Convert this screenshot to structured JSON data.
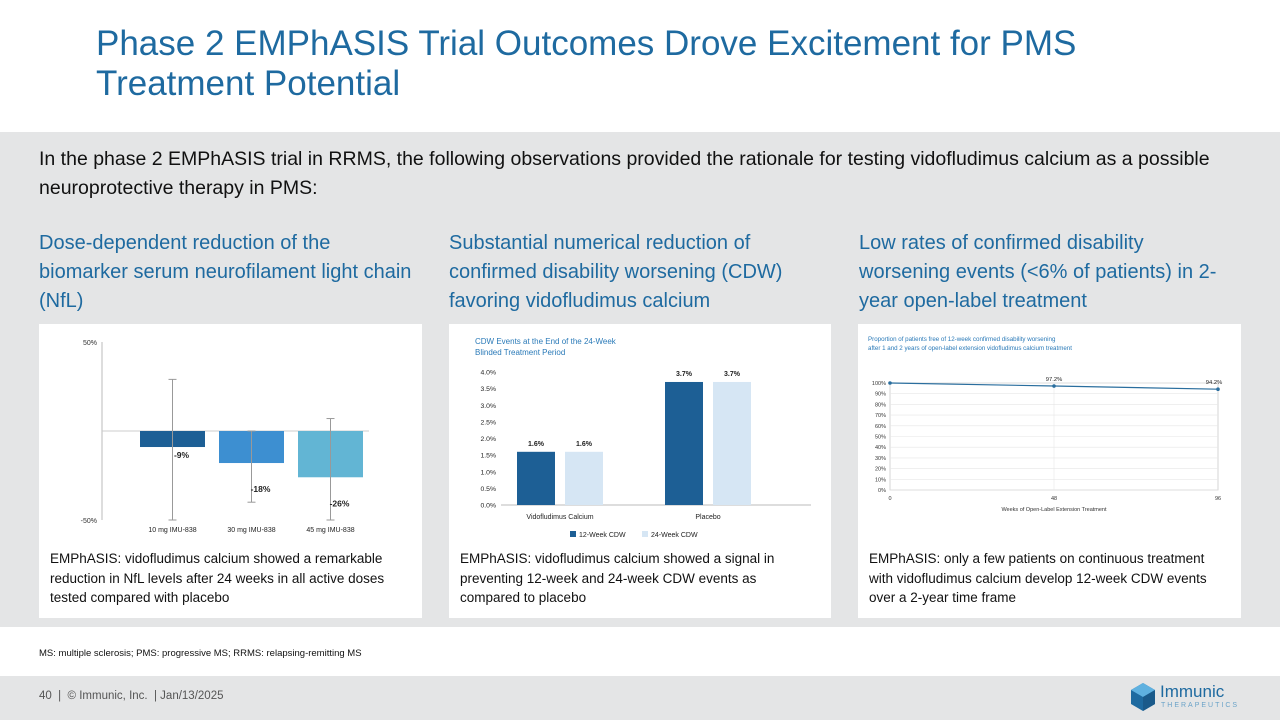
{
  "slide": {
    "title": "Phase 2 EMPhASIS Trial Outcomes Drove Excitement for PMS Treatment Potential",
    "intro": "In the phase 2 EMPhASIS trial in RRMS, the following observations provided the rationale for testing vidofludimus calcium as a possible neuroprotective therapy in PMS:",
    "columns": [
      {
        "heading": "Dose-dependent reduction of the biomarker serum neurofilament light chain (NfL)",
        "caption": "EMPhASIS: vidofludimus calcium showed a remarkable reduction in NfL levels after 24 weeks in all active doses tested compared with placebo"
      },
      {
        "heading": "Substantial numerical reduction of confirmed disability worsening (CDW) favoring vidofludimus calcium",
        "caption": "EMPhASIS: vidofludimus calcium showed a signal in preventing 12-week and 24-week CDW events as compared to placebo"
      },
      {
        "heading": "Low rates of confirmed disability worsening events (<6% of patients) in 2-year open-label treatment",
        "caption": "EMPhASIS: only a few patients on continuous treatment with vidofludimus calcium develop 12-week CDW events over a 2-year time frame"
      }
    ],
    "footnote": "MS: multiple sclerosis; PMS: progressive MS; RRMS: relapsing-remitting MS",
    "footer": "40  |  © Immunic, Inc.  | Jan/13/2025",
    "logo": {
      "name": "Immunic",
      "sub": "THERAPEUTICS"
    }
  },
  "colors": {
    "primary": "#1e6aa0",
    "dark_bar": "#1d5f95",
    "light_bar": "#d6e6f4",
    "nfl1": "#1d5f95",
    "nfl2": "#3d8fd1",
    "nfl3": "#62b5d4",
    "band": "#e4e5e6"
  },
  "chart_data": [
    {
      "type": "bar",
      "title": "",
      "categories": [
        "10 mg IMU-838",
        "30 mg IMU-838",
        "45 mg IMU-838"
      ],
      "values": [
        -9,
        -18,
        -26
      ],
      "labels": [
        "-9%",
        "-18%",
        "-26%"
      ],
      "error_low": [
        -50,
        -40,
        -50
      ],
      "error_high": [
        29,
        0,
        7
      ],
      "ylim": [
        -50,
        50
      ],
      "yticks": [
        "50%",
        "-50%"
      ]
    },
    {
      "type": "bar",
      "title": "CDW Events at the End of the 24-Week Blinded Treatment Period",
      "categories": [
        "Vidofludimus Calcium",
        "Placebo"
      ],
      "series": [
        {
          "name": "12-Week CDW",
          "values": [
            1.6,
            3.7
          ],
          "labels": [
            "1.6%",
            "3.7%"
          ]
        },
        {
          "name": "24-Week CDW",
          "values": [
            1.6,
            3.7
          ],
          "labels": [
            "1.6%",
            "3.7%"
          ]
        }
      ],
      "ylim": [
        0,
        4
      ],
      "yticks": [
        "0.0%",
        "0.5%",
        "1.0%",
        "1.5%",
        "2.0%",
        "2.5%",
        "3.0%",
        "3.5%",
        "4.0%"
      ]
    },
    {
      "type": "line",
      "title": "Proportion of patients free of 12-week confirmed disability worsening after 1 and 2 years of open-label extension vidofludimus calcium treatment",
      "xlabel": "Weeks of Open-Label Extension Treatment",
      "x": [
        0,
        48,
        96
      ],
      "xticks": [
        "0",
        "48",
        "96"
      ],
      "y": [
        100,
        97.2,
        94.2
      ],
      "point_labels": [
        "",
        "97.2%",
        "94.2%"
      ],
      "ylim": [
        0,
        100
      ],
      "yticks": [
        "0%",
        "10%",
        "20%",
        "30%",
        "40%",
        "50%",
        "60%",
        "70%",
        "80%",
        "90%",
        "100%"
      ]
    }
  ]
}
